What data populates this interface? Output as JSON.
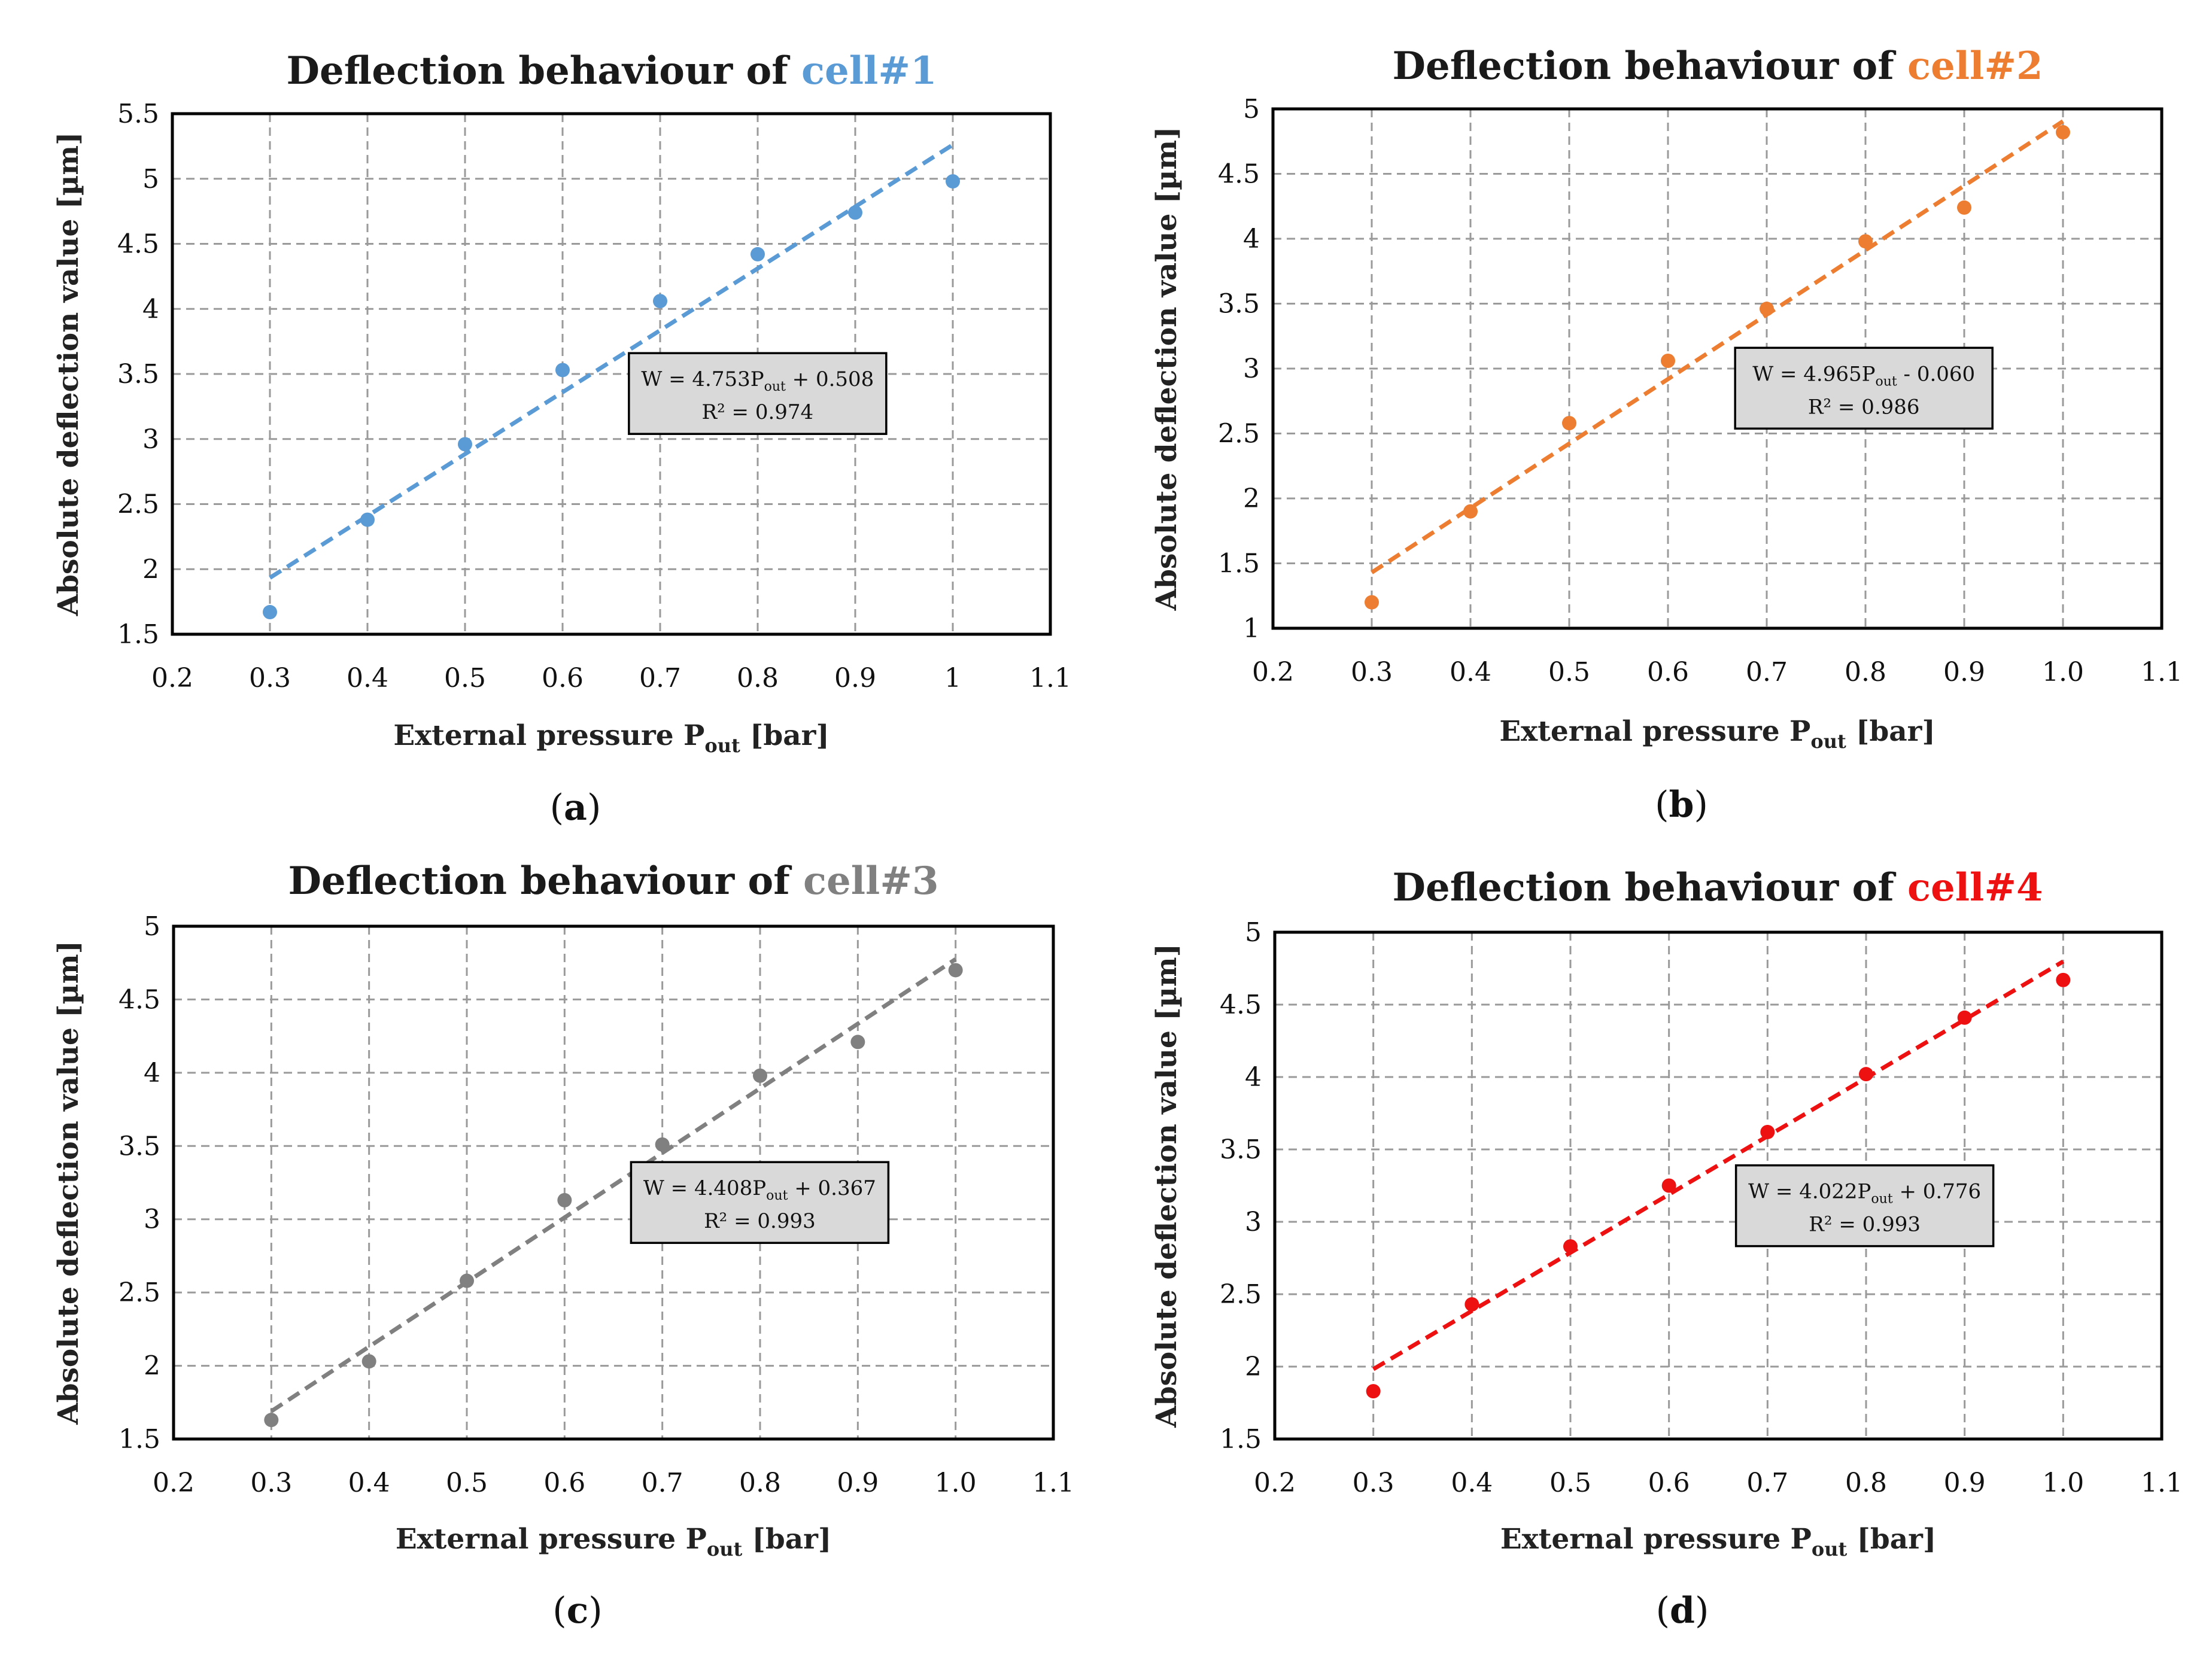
{
  "figure": {
    "x_axis_label": "External pressure P",
    "x_axis_subscript": "out",
    "x_axis_unit": " [bar]",
    "y_axis_label": "Absolute deflection value [µm]"
  },
  "chart_data": [
    {
      "type": "scatter",
      "panel_label": "a",
      "title_prefix": "Deflection behaviour of ",
      "title_highlight": "cell#1",
      "color": "#5b9bd5",
      "xlim": [
        0.2,
        1.1
      ],
      "ylim": [
        1.5,
        5.5
      ],
      "x_ticks": [
        0.2,
        0.3,
        0.4,
        0.5,
        0.6,
        0.7,
        0.8,
        0.9,
        1,
        1.1
      ],
      "x_tick_labels": [
        "0.2",
        "0.3",
        "0.4",
        "0.5",
        "0.6",
        "0.7",
        "0.8",
        "0.9",
        "1",
        "1.1"
      ],
      "y_ticks": [
        1.5,
        2,
        2.5,
        3,
        3.5,
        4,
        4.5,
        5,
        5.5
      ],
      "y_tick_labels": [
        "1.5",
        "2",
        "2.5",
        "3",
        "3.5",
        "4",
        "4.5",
        "5",
        "5.5"
      ],
      "x": [
        0.3,
        0.4,
        0.5,
        0.6,
        0.7,
        0.8,
        0.9,
        1.0
      ],
      "y": [
        1.67,
        2.38,
        2.96,
        3.53,
        4.06,
        4.42,
        4.74,
        4.98
      ],
      "trendline": {
        "slope": 4.753,
        "intercept": 0.508,
        "x_range": [
          0.3,
          1.0
        ]
      },
      "equation": {
        "lhs": "W = 4.753P",
        "sub": "out",
        "rhs": " + 0.508",
        "r2": "R² = 0.974"
      }
    },
    {
      "type": "scatter",
      "panel_label": "b",
      "title_prefix": "Deflection behaviour of ",
      "title_highlight": "cell#2",
      "color": "#ed7d31",
      "xlim": [
        0.2,
        1.1
      ],
      "ylim": [
        1,
        5
      ],
      "x_ticks": [
        0.2,
        0.3,
        0.4,
        0.5,
        0.6,
        0.7,
        0.8,
        0.9,
        1.0,
        1.1
      ],
      "x_tick_labels": [
        "0.2",
        "0.3",
        "0.4",
        "0.5",
        "0.6",
        "0.7",
        "0.8",
        "0.9",
        "1.0",
        "1.1"
      ],
      "y_ticks": [
        1,
        1.5,
        2,
        2.5,
        3,
        3.5,
        4,
        4.5,
        5
      ],
      "y_tick_labels": [
        "1",
        "1.5",
        "2",
        "2.5",
        "3",
        "3.5",
        "4",
        "4.5",
        "5"
      ],
      "x": [
        0.3,
        0.4,
        0.5,
        0.6,
        0.7,
        0.8,
        0.9,
        1.0
      ],
      "y": [
        1.2,
        1.9,
        2.58,
        3.06,
        3.46,
        3.98,
        4.24,
        4.82
      ],
      "trendline": {
        "slope": 4.965,
        "intercept": -0.06,
        "x_range": [
          0.3,
          1.0
        ]
      },
      "equation": {
        "lhs": "W = 4.965P",
        "sub": "out",
        "rhs": " - 0.060",
        "r2": "R² = 0.986"
      }
    },
    {
      "type": "scatter",
      "panel_label": "c",
      "title_prefix": "Deflection behaviour of ",
      "title_highlight": "cell#3",
      "color": "#808080",
      "xlim": [
        0.2,
        1.1
      ],
      "ylim": [
        1.5,
        5
      ],
      "x_ticks": [
        0.2,
        0.3,
        0.4,
        0.5,
        0.6,
        0.7,
        0.8,
        0.9,
        1.0,
        1.1
      ],
      "x_tick_labels": [
        "0.2",
        "0.3",
        "0.4",
        "0.5",
        "0.6",
        "0.7",
        "0.8",
        "0.9",
        "1.0",
        "1.1"
      ],
      "y_ticks": [
        1.5,
        2,
        2.5,
        3,
        3.5,
        4,
        4.5,
        5
      ],
      "y_tick_labels": [
        "1.5",
        "2",
        "2.5",
        "3",
        "3.5",
        "4",
        "4.5",
        "5"
      ],
      "x": [
        0.3,
        0.4,
        0.5,
        0.6,
        0.7,
        0.8,
        0.9,
        1.0
      ],
      "y": [
        1.63,
        2.03,
        2.58,
        3.13,
        3.51,
        3.98,
        4.21,
        4.7
      ],
      "trendline": {
        "slope": 4.408,
        "intercept": 0.367,
        "x_range": [
          0.3,
          1.0
        ]
      },
      "equation": {
        "lhs": "W = 4.408P",
        "sub": "out",
        "rhs": " + 0.367",
        "r2": "R² = 0.993"
      }
    },
    {
      "type": "scatter",
      "panel_label": "d",
      "title_prefix": "Deflection behaviour of ",
      "title_highlight": "cell#4",
      "color": "#ee1111",
      "xlim": [
        0.2,
        1.1
      ],
      "ylim": [
        1.5,
        5
      ],
      "x_ticks": [
        0.2,
        0.3,
        0.4,
        0.5,
        0.6,
        0.7,
        0.8,
        0.9,
        1.0,
        1.1
      ],
      "x_tick_labels": [
        "0.2",
        "0.3",
        "0.4",
        "0.5",
        "0.6",
        "0.7",
        "0.8",
        "0.9",
        "1.0",
        "1.1"
      ],
      "y_ticks": [
        1.5,
        2,
        2.5,
        3,
        3.5,
        4,
        4.5,
        5
      ],
      "y_tick_labels": [
        "1.5",
        "2",
        "2.5",
        "3",
        "3.5",
        "4",
        "4.5",
        "5"
      ],
      "x": [
        0.3,
        0.4,
        0.5,
        0.6,
        0.7,
        0.8,
        0.9,
        1.0
      ],
      "y": [
        1.83,
        2.43,
        2.83,
        3.25,
        3.62,
        4.02,
        4.41,
        4.67
      ],
      "trendline": {
        "slope": 4.022,
        "intercept": 0.776,
        "x_range": [
          0.3,
          1.0
        ]
      },
      "equation": {
        "lhs": "W = 4.022P",
        "sub": "out",
        "rhs": " + 0.776",
        "r2": "R² = 0.993"
      }
    }
  ]
}
